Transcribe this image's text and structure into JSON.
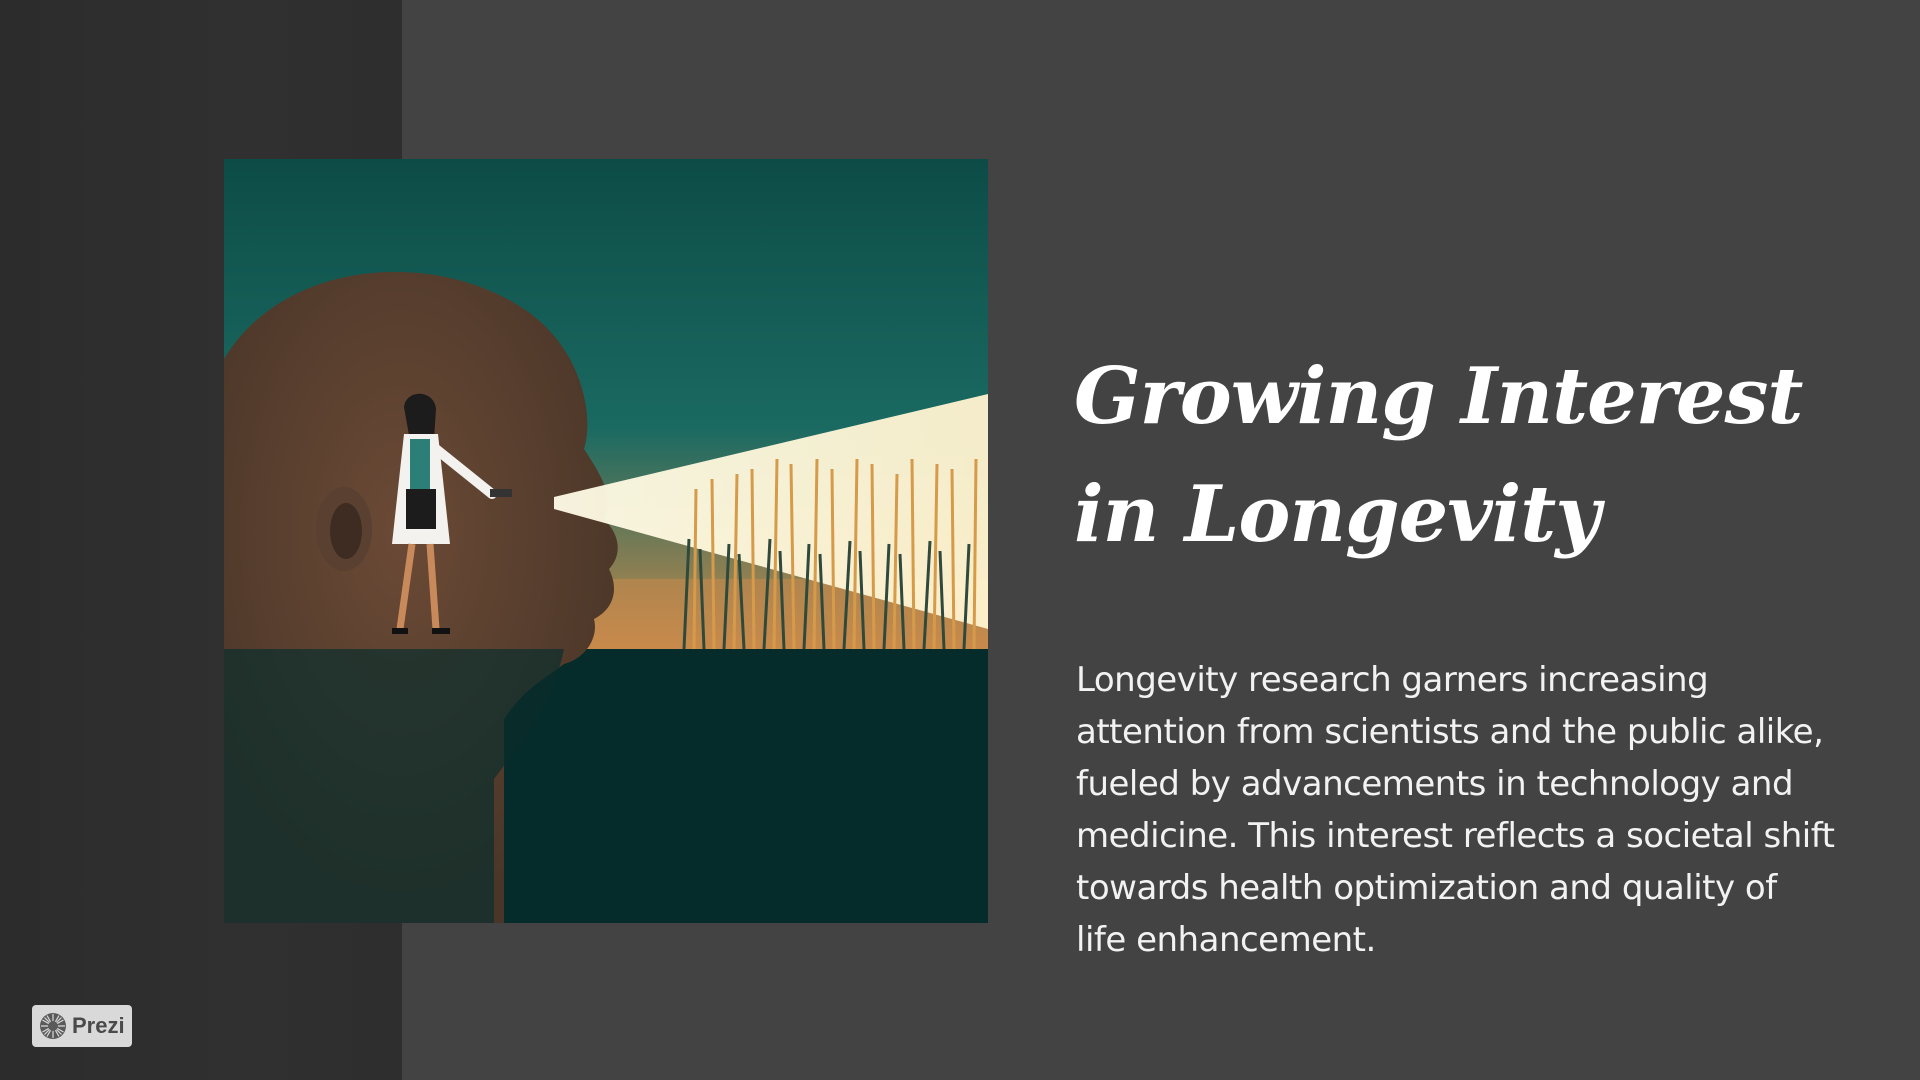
{
  "slide": {
    "title": "Growing Interest in Longevity",
    "body": "Longevity research garners increasing attention from scientists and the public alike, fueled by advancements in technology and medicine. This interest reflects a societal shift towards health optimization and quality of life enhancement."
  },
  "illustration": {
    "icon": "scientist-flashlight-head-illustration"
  },
  "badge": {
    "label": "Prezi",
    "icon": "prezi-logo-icon"
  },
  "colors": {
    "background": "#434343",
    "left_panel": "#2e2e2e",
    "title": "#ffffff",
    "body": "#f2f2f2"
  }
}
